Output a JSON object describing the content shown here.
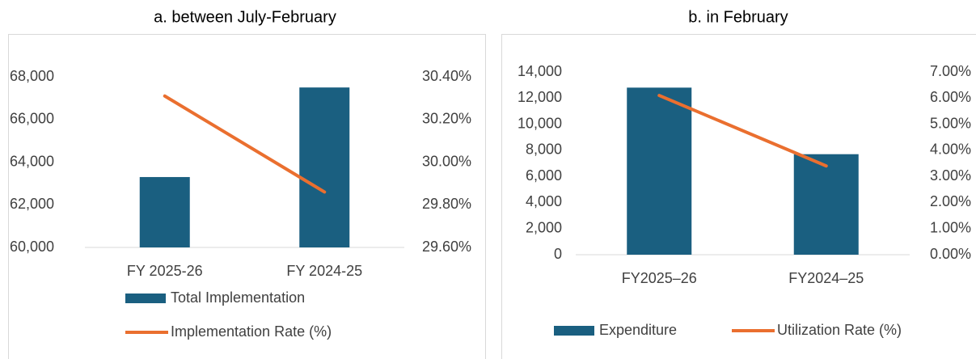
{
  "chart_data": [
    {
      "type": "bar",
      "title": "a. between July-February",
      "categories": [
        "FY 2025-26",
        "FY 2024-25"
      ],
      "series": [
        {
          "name": "Total Implementation",
          "type": "bar",
          "color": "#1a5f80",
          "values": [
            63300,
            67500
          ]
        },
        {
          "name": "Implementation Rate (%)",
          "type": "line",
          "axis": "y2",
          "color": "#ea6f2f",
          "values": [
            30.31,
            29.86
          ]
        }
      ],
      "ylim": [
        60000,
        68000
      ],
      "yticks": [
        {
          "value": 60000,
          "label": "60,000"
        },
        {
          "value": 62000,
          "label": "62,000"
        },
        {
          "value": 64000,
          "label": "64,000"
        },
        {
          "value": 66000,
          "label": "66,000"
        },
        {
          "value": 68000,
          "label": "68,000"
        }
      ],
      "y2lim": [
        29.6,
        30.4
      ],
      "y2ticks": [
        {
          "value": 29.6,
          "label": "29.60%"
        },
        {
          "value": 29.8,
          "label": "29.80%"
        },
        {
          "value": 30.0,
          "label": "30.00%"
        },
        {
          "value": 30.2,
          "label": "30.20%"
        },
        {
          "value": 30.4,
          "label": "30.40%"
        }
      ],
      "legend": "bottom",
      "grid": false
    },
    {
      "type": "bar",
      "title": "b. in February",
      "categories": [
        "FY2025–26",
        "FY2024–25"
      ],
      "series": [
        {
          "name": "Expenditure",
          "type": "bar",
          "color": "#1a5f80",
          "values": [
            12800,
            7700
          ]
        },
        {
          "name": "Utilization Rate (%)",
          "type": "line",
          "axis": "y2",
          "color": "#ea6f2f",
          "values": [
            6.1,
            3.4
          ]
        }
      ],
      "ylim": [
        0,
        14000
      ],
      "yticks": [
        0,
        {
          "value": 2000,
          "label": "2,000"
        },
        {
          "value": 4000,
          "label": "4,000"
        },
        {
          "value": 6000,
          "label": "6,000"
        },
        {
          "value": 8000,
          "label": "8,000"
        },
        {
          "value": 10000,
          "label": "10,000"
        },
        {
          "value": 12000,
          "label": "12,000"
        },
        {
          "value": 14000,
          "label": "14,000"
        }
      ],
      "y2lim": [
        0,
        7
      ],
      "y2ticks": [
        {
          "value": 0,
          "label": "0.00%"
        },
        {
          "value": 1,
          "label": "1.00%"
        },
        {
          "value": 2,
          "label": "2.00%"
        },
        {
          "value": 3,
          "label": "3.00%"
        },
        {
          "value": 4,
          "label": "4.00%"
        },
        {
          "value": 5,
          "label": "5.00%"
        },
        {
          "value": 6,
          "label": "6.00%"
        },
        {
          "value": 7,
          "label": "7.00%"
        }
      ],
      "legend": "bottom",
      "grid": false
    }
  ]
}
